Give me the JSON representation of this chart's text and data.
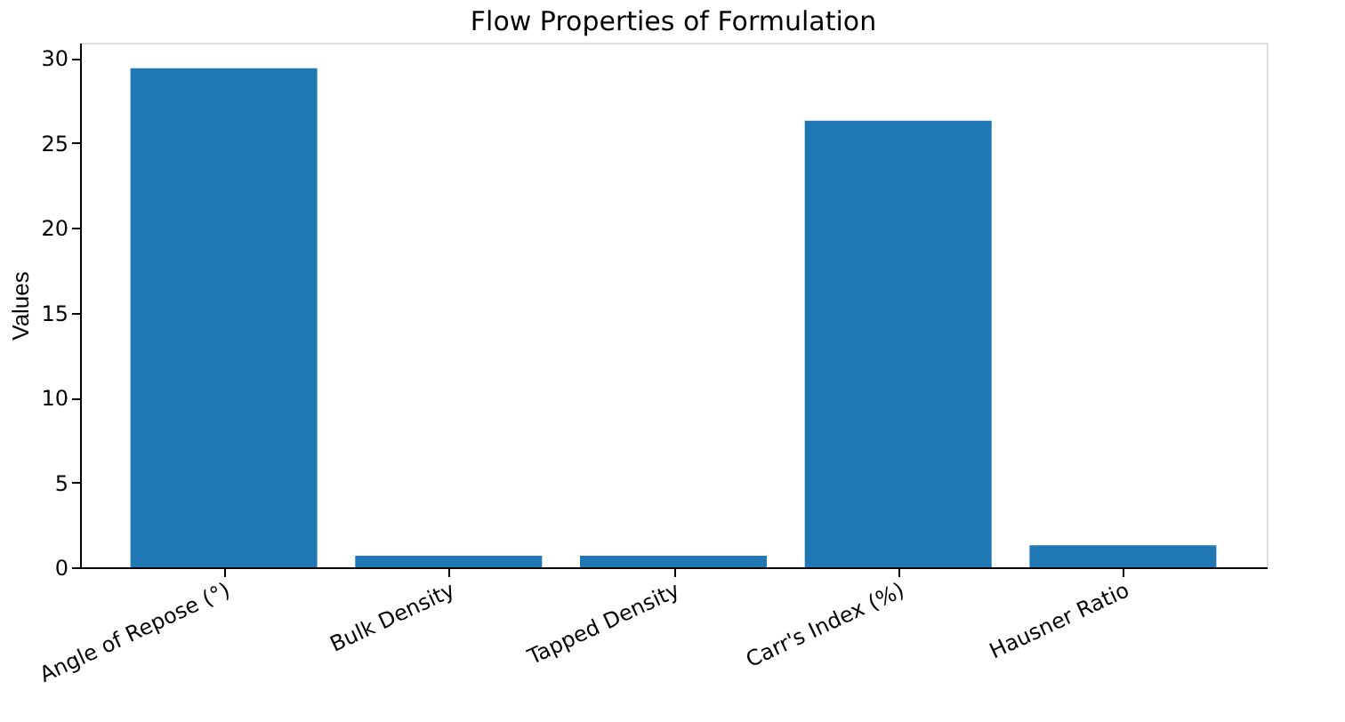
{
  "chart_data": {
    "type": "bar",
    "title": "Flow Properties of Formulation",
    "ylabel": "Values",
    "categories": [
      "Angle of Repose (°)",
      "Bulk Density",
      "Tapped Density",
      "Carr's Index (%)",
      "Hausner Ratio"
    ],
    "values": [
      29.4,
      0.68,
      0.68,
      26.3,
      1.3
    ],
    "color": "#1f77b4",
    "ylim": [
      0,
      30.9
    ],
    "yticks": [
      0,
      5,
      10,
      15,
      20,
      25,
      30
    ],
    "grid": false
  }
}
